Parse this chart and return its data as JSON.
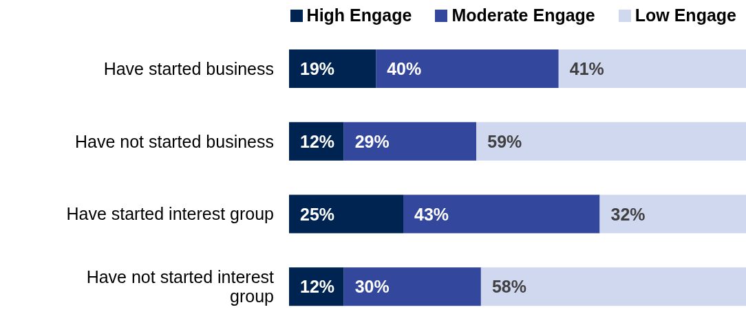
{
  "chart_data": {
    "type": "bar",
    "orientation": "horizontal",
    "stacked": true,
    "xlim": [
      0,
      100
    ],
    "tick_labels": "y",
    "legend": "top",
    "categories": [
      "Have started business",
      "Have not started business",
      "Have started interest group",
      "Have not started interest group"
    ],
    "series": [
      {
        "name": "High Engage",
        "color": "#002451",
        "values": [
          19,
          12,
          25,
          12
        ],
        "value_labels": [
          "19%",
          "12%",
          "25%",
          "12%"
        ]
      },
      {
        "name": "Moderate Engage",
        "color": "#33479c",
        "values": [
          40,
          29,
          43,
          30
        ],
        "value_labels": [
          "40%",
          "29%",
          "43%",
          "30%"
        ]
      },
      {
        "name": "Low Engage",
        "color": "#d0d8f0",
        "values": [
          41,
          59,
          32,
          58
        ],
        "value_labels": [
          "41%",
          "59%",
          "32%",
          "58%"
        ]
      }
    ]
  }
}
